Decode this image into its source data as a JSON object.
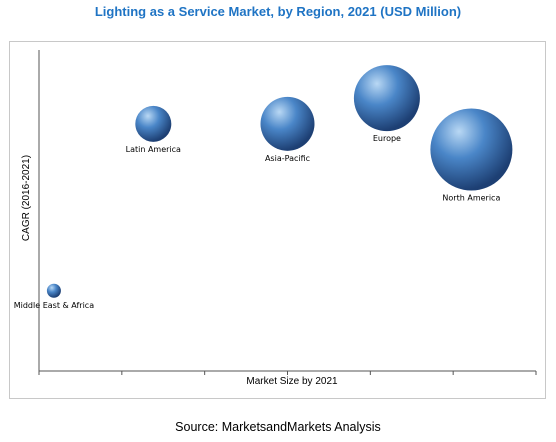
{
  "source": "Source: MarketsandMarkets Analysis",
  "colors": {
    "title": "#1f74c4",
    "bubble_highlight": "#b9d8f4",
    "bubble_mid": "#4a86c8",
    "bubble_dark": "#1d3f73",
    "axis": "#555555",
    "frame": "#c8c8c8"
  },
  "chart_data": {
    "type": "scatter",
    "title": "Lighting as a Service Market, by Region, 2021 (USD Million)",
    "xlabel": "Market Size by 2021",
    "ylabel": "CAGR (2016-2021)",
    "xlim": [
      0,
      100
    ],
    "ylim": [
      0,
      100
    ],
    "x_ticks": 7,
    "grid": false,
    "points": [
      {
        "label": "Latin America",
        "x": 23,
        "y": 77,
        "size": 18
      },
      {
        "label": "Asia-Pacific",
        "x": 50,
        "y": 77,
        "size": 27
      },
      {
        "label": "Europe",
        "x": 70,
        "y": 85,
        "size": 33
      },
      {
        "label": "North America",
        "x": 87,
        "y": 69,
        "size": 41
      },
      {
        "label": "Middle East & Africa",
        "x": 3,
        "y": 25,
        "size": 7
      }
    ]
  }
}
